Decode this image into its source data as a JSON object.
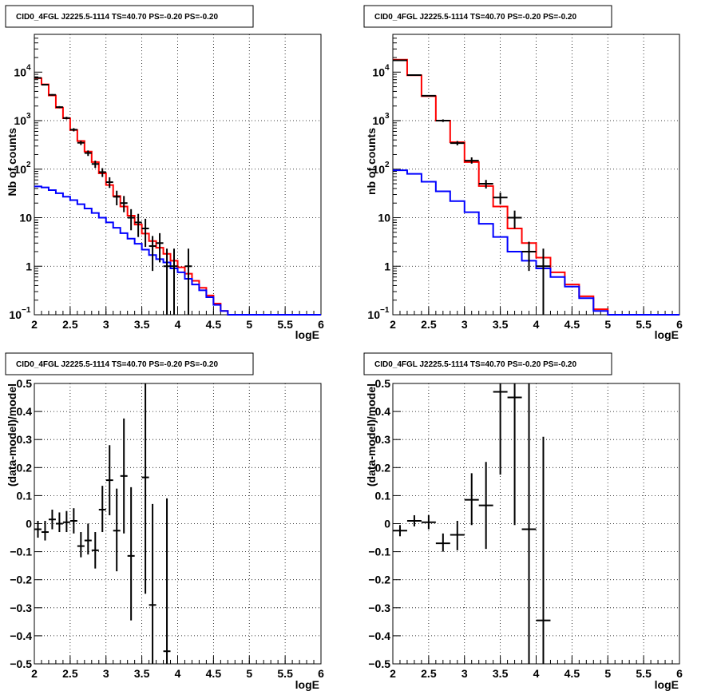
{
  "chart_data": [
    {
      "type": "histogram",
      "title": "CID0_4FGL J2225.5-1114 TS=40.70 PS=-0.20 PS=-0.20",
      "xlabel": "logE",
      "ylabel": "Nb of counts",
      "xlim": [
        2,
        6
      ],
      "ylim": [
        0.1,
        60000
      ],
      "log_y": true,
      "grid": true,
      "x_ticks": [
        "2",
        "2.5",
        "3",
        "3.5",
        "4",
        "4.5",
        "5",
        "5.5",
        "6"
      ],
      "y_ticks": [
        {
          "value": 0.1,
          "base": "10",
          "exp": "−1"
        },
        {
          "value": 1,
          "base": "1",
          "exp": ""
        },
        {
          "value": 10,
          "base": "10",
          "exp": ""
        },
        {
          "value": 100,
          "base": "10",
          "exp": "2"
        },
        {
          "value": 1000,
          "base": "10",
          "exp": "3"
        },
        {
          "value": 10000,
          "base": "10",
          "exp": "4"
        }
      ],
      "bin_edges": [
        2.0,
        2.1,
        2.2,
        2.3,
        2.4,
        2.5,
        2.6,
        2.7,
        2.8,
        2.9,
        3.0,
        3.1,
        3.2,
        3.3,
        3.4,
        3.5,
        3.6,
        3.7,
        3.8,
        3.9,
        4.0,
        4.1,
        4.2,
        4.3,
        4.4,
        4.5,
        4.6,
        4.7,
        4.8,
        4.9,
        5.0,
        5.1,
        5.2,
        5.3,
        5.4,
        5.5,
        5.6,
        5.7,
        5.8,
        5.9,
        6.0
      ],
      "series": [
        {
          "color": "#ff0000",
          "kind": "step",
          "values": [
            7500,
            5600,
            3300,
            1850,
            1120,
            640,
            380,
            230,
            140,
            82,
            47,
            28,
            17,
            11,
            7.2,
            4.7,
            3.3,
            2.4,
            1.8,
            1.3,
            0.95,
            0.7,
            0.5,
            0.36,
            0.25,
            0.17,
            0.12,
            0.1,
            0.1,
            0.1,
            0.1,
            0.1,
            0.1,
            0.1,
            0.1,
            0.1,
            0.1,
            0.1,
            0.1,
            0.1
          ]
        },
        {
          "color": "#0000ff",
          "kind": "step",
          "values": [
            44,
            42,
            37,
            32,
            27,
            23,
            19,
            15.5,
            12.5,
            10,
            8,
            6.2,
            4.8,
            3.7,
            2.9,
            2.2,
            1.7,
            1.4,
            1.2,
            0.9,
            0.75,
            0.55,
            0.42,
            0.32,
            0.23,
            0.16,
            0.12,
            0.1,
            0.1,
            0.1,
            0.1,
            0.1,
            0.1,
            0.1,
            0.1,
            0.1,
            0.1,
            0.1,
            0.1,
            0.1
          ]
        }
      ],
      "points": [
        {
          "x": 2.05,
          "y": 7600,
          "lo": 7400,
          "hi": 7800
        },
        {
          "x": 2.15,
          "y": 5500,
          "lo": 5350,
          "hi": 5650
        },
        {
          "x": 2.25,
          "y": 3400,
          "lo": 3280,
          "hi": 3520
        },
        {
          "x": 2.35,
          "y": 1900,
          "lo": 1810,
          "hi": 1990
        },
        {
          "x": 2.45,
          "y": 1130,
          "lo": 1060,
          "hi": 1200
        },
        {
          "x": 2.55,
          "y": 650,
          "lo": 600,
          "hi": 700
        },
        {
          "x": 2.65,
          "y": 350,
          "lo": 315,
          "hi": 385
        },
        {
          "x": 2.75,
          "y": 215,
          "lo": 187,
          "hi": 243
        },
        {
          "x": 2.85,
          "y": 128,
          "lo": 106,
          "hi": 150
        },
        {
          "x": 2.95,
          "y": 87,
          "lo": 69,
          "hi": 105
        },
        {
          "x": 3.05,
          "y": 54,
          "lo": 41,
          "hi": 68
        },
        {
          "x": 3.15,
          "y": 27,
          "lo": 18,
          "hi": 36
        },
        {
          "x": 3.25,
          "y": 20,
          "lo": 13,
          "hi": 28
        },
        {
          "x": 3.35,
          "y": 10,
          "lo": 5.5,
          "hi": 15
        },
        {
          "x": 3.45,
          "y": 8,
          "lo": 4,
          "hi": 12
        },
        {
          "x": 3.55,
          "y": 6,
          "lo": 2.5,
          "hi": 9.5
        },
        {
          "x": 3.65,
          "y": 2.6,
          "lo": 0.8,
          "hi": 4.2
        },
        {
          "x": 3.75,
          "y": 3,
          "lo": 1.2,
          "hi": 4.8
        },
        {
          "x": 3.85,
          "y": 1,
          "lo": 0.1,
          "hi": 2.3
        },
        {
          "x": 3.95,
          "y": 1,
          "lo": 0.1,
          "hi": 2.3
        },
        {
          "x": 4.15,
          "y": 1,
          "lo": 0.1,
          "hi": 2.3
        }
      ]
    },
    {
      "type": "histogram",
      "title": "CID0_4FGL J2225.5-1114 TS=40.70 PS=-0.20 PS=-0.20",
      "xlabel": "logE",
      "ylabel": "nb of counts",
      "xlim": [
        2,
        6
      ],
      "ylim": [
        0.1,
        60000
      ],
      "log_y": true,
      "grid": true,
      "x_ticks": [
        "2",
        "2.5",
        "3",
        "3.5",
        "4",
        "4.5",
        "5",
        "5.5",
        "6"
      ],
      "y_ticks": [
        {
          "value": 0.1,
          "base": "10",
          "exp": "−1"
        },
        {
          "value": 1,
          "base": "1",
          "exp": ""
        },
        {
          "value": 10,
          "base": "10",
          "exp": ""
        },
        {
          "value": 100,
          "base": "10",
          "exp": "2"
        },
        {
          "value": 1000,
          "base": "10",
          "exp": "3"
        },
        {
          "value": 10000,
          "base": "10",
          "exp": "4"
        }
      ],
      "bin_edges": [
        2.0,
        2.2,
        2.4,
        2.6,
        2.8,
        3.0,
        3.2,
        3.4,
        3.6,
        3.8,
        4.0,
        4.2,
        4.4,
        4.6,
        4.8,
        5.0,
        5.2,
        5.4,
        5.6,
        5.8,
        6.0
      ],
      "series": [
        {
          "color": "#ff0000",
          "kind": "step",
          "values": [
            18000,
            8600,
            3200,
            1000,
            360,
            140,
            45,
            17,
            6,
            3,
            1.5,
            0.75,
            0.42,
            0.24,
            0.13,
            0.1,
            0.1,
            0.1,
            0.1,
            0.1
          ]
        },
        {
          "color": "#0000ff",
          "kind": "step",
          "values": [
            95,
            80,
            55,
            35,
            22,
            13,
            7.5,
            4,
            2,
            1.3,
            0.9,
            0.6,
            0.38,
            0.22,
            0.12,
            0.1,
            0.1,
            0.1,
            0.1,
            0.1
          ]
        }
      ],
      "points": [
        {
          "x": 2.1,
          "y": 17500,
          "lo": 17300,
          "hi": 17700
        },
        {
          "x": 2.3,
          "y": 8700,
          "lo": 8550,
          "hi": 8850
        },
        {
          "x": 2.5,
          "y": 3250,
          "lo": 3150,
          "hi": 3350
        },
        {
          "x": 2.7,
          "y": 1000,
          "lo": 940,
          "hi": 1060
        },
        {
          "x": 2.9,
          "y": 345,
          "lo": 310,
          "hi": 380
        },
        {
          "x": 3.1,
          "y": 150,
          "lo": 130,
          "hi": 175
        },
        {
          "x": 3.3,
          "y": 50,
          "lo": 40,
          "hi": 60
        },
        {
          "x": 3.5,
          "y": 26,
          "lo": 19,
          "hi": 33
        },
        {
          "x": 3.7,
          "y": 10,
          "lo": 6,
          "hi": 14
        },
        {
          "x": 3.9,
          "y": 2,
          "lo": 0.8,
          "hi": 3.2
        },
        {
          "x": 4.1,
          "y": 1,
          "lo": 0.1,
          "hi": 2.3
        }
      ]
    },
    {
      "type": "scatter",
      "title": "CID0_4FGL J2225.5-1114 TS=40.70 PS=-0.20 PS=-0.20",
      "xlabel": "logE",
      "ylabel": "(data-model)/model",
      "xlim": [
        2,
        6
      ],
      "ylim": [
        -0.5,
        0.5
      ],
      "log_y": false,
      "grid": true,
      "x_ticks": [
        "2",
        "2.5",
        "3",
        "3.5",
        "4",
        "4.5",
        "5",
        "5.5",
        "6"
      ],
      "y_ticks": [
        "−0.5",
        "−0.4",
        "−0.3",
        "−0.2",
        "−0.1",
        "0",
        "0.1",
        "0.2",
        "0.3",
        "0.4",
        "0.5"
      ],
      "xbin": 0.1,
      "points": [
        {
          "x": 2.05,
          "y": -0.02,
          "lo": -0.05,
          "hi": 0.01
        },
        {
          "x": 2.15,
          "y": -0.03,
          "lo": -0.06,
          "hi": 0.01
        },
        {
          "x": 2.25,
          "y": 0.015,
          "lo": -0.02,
          "hi": 0.05
        },
        {
          "x": 2.35,
          "y": 0.0,
          "lo": -0.03,
          "hi": 0.04
        },
        {
          "x": 2.45,
          "y": 0.005,
          "lo": -0.03,
          "hi": 0.045
        },
        {
          "x": 2.55,
          "y": 0.01,
          "lo": -0.035,
          "hi": 0.055
        },
        {
          "x": 2.65,
          "y": -0.08,
          "lo": -0.12,
          "hi": -0.03
        },
        {
          "x": 2.75,
          "y": -0.06,
          "lo": -0.11,
          "hi": 0.0
        },
        {
          "x": 2.85,
          "y": -0.095,
          "lo": -0.16,
          "hi": -0.03
        },
        {
          "x": 2.95,
          "y": 0.05,
          "lo": -0.03,
          "hi": 0.135
        },
        {
          "x": 3.05,
          "y": 0.155,
          "lo": 0.03,
          "hi": 0.28
        },
        {
          "x": 3.15,
          "y": -0.025,
          "lo": -0.17,
          "hi": 0.125
        },
        {
          "x": 3.25,
          "y": 0.17,
          "lo": -0.035,
          "hi": 0.375
        },
        {
          "x": 3.35,
          "y": -0.115,
          "lo": -0.345,
          "hi": 0.13
        },
        {
          "x": 3.55,
          "y": 0.165,
          "lo": -0.25,
          "hi": 0.5
        },
        {
          "x": 3.65,
          "y": -0.29,
          "lo": -0.5,
          "hi": 0.07
        },
        {
          "x": 3.85,
          "y": -0.455,
          "lo": -0.5,
          "hi": 0.09
        }
      ]
    },
    {
      "type": "scatter",
      "title": "CID0_4FGL J2225.5-1114 TS=40.70 PS=-0.20 PS=-0.20",
      "xlabel": "logE",
      "ylabel": "(data-model)/model",
      "xlim": [
        2,
        6
      ],
      "ylim": [
        -0.5,
        0.5
      ],
      "log_y": false,
      "grid": true,
      "x_ticks": [
        "2",
        "2.5",
        "3",
        "3.5",
        "4",
        "4.5",
        "5",
        "5.5",
        "6"
      ],
      "y_ticks": [
        "−0.5",
        "−0.4",
        "−0.3",
        "−0.2",
        "−0.1",
        "0",
        "0.1",
        "0.2",
        "0.3",
        "0.4",
        "0.5"
      ],
      "xbin": 0.2,
      "points": [
        {
          "x": 2.1,
          "y": -0.025,
          "lo": -0.045,
          "hi": -0.005
        },
        {
          "x": 2.3,
          "y": 0.01,
          "lo": -0.01,
          "hi": 0.03
        },
        {
          "x": 2.5,
          "y": 0.005,
          "lo": -0.02,
          "hi": 0.03
        },
        {
          "x": 2.7,
          "y": -0.07,
          "lo": -0.1,
          "hi": -0.035
        },
        {
          "x": 2.9,
          "y": -0.04,
          "lo": -0.095,
          "hi": 0.01
        },
        {
          "x": 3.1,
          "y": 0.085,
          "lo": -0.005,
          "hi": 0.18
        },
        {
          "x": 3.3,
          "y": 0.065,
          "lo": -0.09,
          "hi": 0.22
        },
        {
          "x": 3.5,
          "y": 0.47,
          "lo": 0.175,
          "hi": 0.5
        },
        {
          "x": 3.7,
          "y": 0.45,
          "lo": -0.005,
          "hi": 0.5
        },
        {
          "x": 3.9,
          "y": -0.02,
          "lo": -0.5,
          "hi": 0.5
        },
        {
          "x": 4.1,
          "y": -0.345,
          "lo": -0.5,
          "hi": 0.31
        }
      ]
    }
  ]
}
